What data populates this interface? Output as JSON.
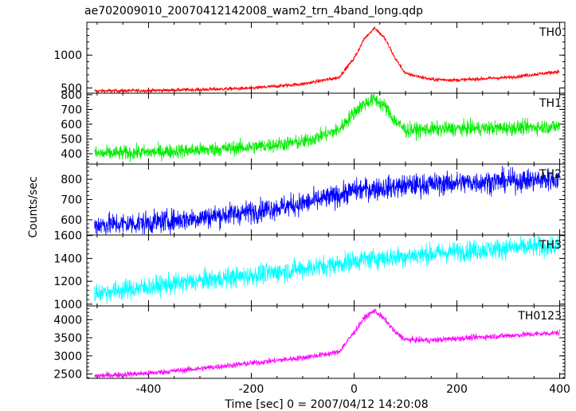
{
  "title": "ae702009010_20070412142008_wam2_trn_4band_long.qdp",
  "ylabel": "Counts/sec",
  "xlabel": "Time [sec] 0 = 2007/04/12 14:20:08",
  "chart_data": {
    "type": "line",
    "title": "ae702009010_20070412142008_wam2_trn_4band_long.qdp",
    "xlabel": "Time [sec] 0 = 2007/04/12 14:20:08",
    "ylabel": "Counts/sec",
    "xlim": [
      -520,
      410
    ],
    "xticks": [
      -400,
      -200,
      0,
      200,
      400
    ],
    "x": [
      -500,
      -400,
      -300,
      -200,
      -100,
      -30,
      0,
      20,
      40,
      60,
      80,
      100,
      150,
      200,
      300,
      400
    ],
    "panels": [
      {
        "name": "TH0",
        "color": "#ff0000",
        "ylim": [
          420,
          1500
        ],
        "yticks": [
          500,
          1000
        ],
        "noise": 14,
        "values": [
          455,
          460,
          475,
          495,
          560,
          660,
          950,
          1250,
          1420,
          1250,
          950,
          720,
          630,
          620,
          660,
          750
        ]
      },
      {
        "name": "TH1",
        "color": "#00ee00",
        "ylim": [
          330,
          810
        ],
        "yticks": [
          400,
          500,
          600,
          700,
          800
        ],
        "noise": 25,
        "values": [
          400,
          410,
          425,
          445,
          480,
          560,
          680,
          740,
          770,
          720,
          620,
          560,
          565,
          570,
          575,
          585
        ]
      },
      {
        "name": "TH2",
        "color": "#0000ff",
        "ylim": [
          525,
          875
        ],
        "yticks": [
          600,
          700,
          800
        ],
        "noise": 28,
        "values": [
          575,
          585,
          610,
          640,
          680,
          720,
          745,
          750,
          755,
          758,
          762,
          768,
          775,
          782,
          792,
          800
        ]
      },
      {
        "name": "TH3",
        "color": "#00ffff",
        "ylim": [
          985,
          1605
        ],
        "yticks": [
          1000,
          1200,
          1400,
          1600
        ],
        "noise": 45,
        "values": [
          1100,
          1150,
          1205,
          1250,
          1310,
          1350,
          1380,
          1390,
          1400,
          1405,
          1410,
          1420,
          1440,
          1460,
          1490,
          1510
        ]
      },
      {
        "name": "TH0123",
        "color": "#ff00ff",
        "ylim": [
          2380,
          4380
        ],
        "yticks": [
          2500,
          3000,
          3500,
          4000
        ],
        "noise": 40,
        "values": [
          2450,
          2520,
          2650,
          2800,
          2950,
          3100,
          3650,
          4050,
          4250,
          4000,
          3650,
          3450,
          3430,
          3480,
          3560,
          3640
        ]
      }
    ]
  }
}
